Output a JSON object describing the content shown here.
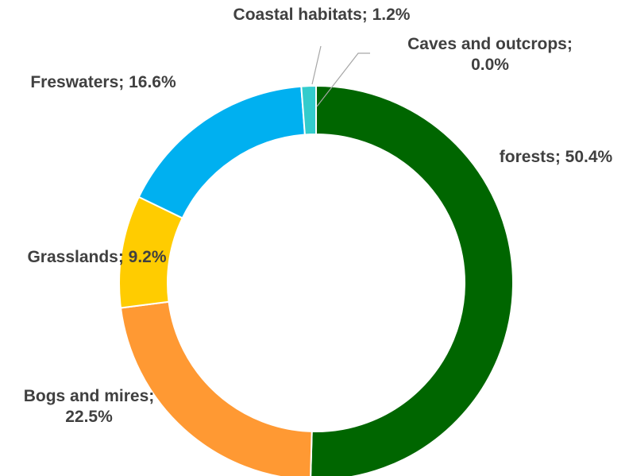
{
  "chart_data": {
    "type": "pie",
    "donut": true,
    "title": "",
    "categories": [
      "forests",
      "Bogs and mires",
      "Grasslands",
      "Freswaters",
      "Coastal habitats",
      "Caves and outcrops"
    ],
    "values": [
      50.4,
      22.5,
      9.2,
      16.6,
      1.2,
      0.0
    ],
    "unit": "%",
    "colors": [
      "#006600",
      "#FF9933",
      "#FFCC00",
      "#00B0F0",
      "#33CCCC",
      "#A6A6A6"
    ],
    "labels": [
      {
        "category": "forests",
        "value": "50.4%",
        "lines": [
          "forests; 50.4%"
        ]
      },
      {
        "category": "Bogs and mires",
        "value": "22.5%",
        "lines": [
          "Bogs and mires;",
          "22.5%"
        ]
      },
      {
        "category": "Grasslands",
        "value": "9.2%",
        "lines": [
          "Grasslands; 9.2%"
        ]
      },
      {
        "category": "Freswaters",
        "value": "16.6%",
        "lines": [
          "Freswaters; 16.6%"
        ]
      },
      {
        "category": "Coastal habitats",
        "value": "1.2%",
        "lines": [
          "Coastal habitats; 1.2%"
        ]
      },
      {
        "category": "Caves and outcrops",
        "value": "0.0%",
        "lines": [
          "Caves and outcrops;",
          "0.0%"
        ]
      }
    ],
    "legend": "none",
    "label_color": "#404040"
  }
}
